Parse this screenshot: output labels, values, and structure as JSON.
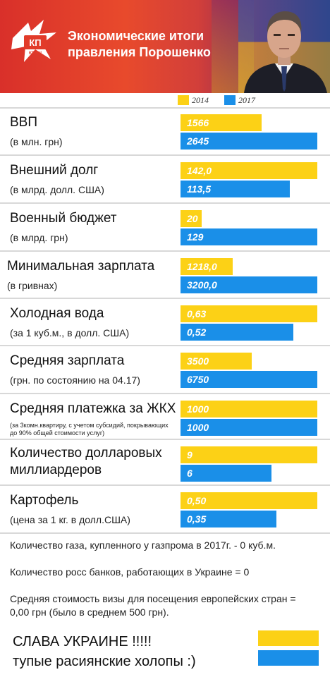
{
  "header": {
    "logo_text": "КП KP.RU",
    "title": "Экономические итоги правления Порошенко"
  },
  "colors": {
    "y2014": "#fcd116",
    "y2017": "#1a8fe8",
    "header_red": "#e84a2c"
  },
  "chart_data": {
    "type": "bar",
    "orientation": "horizontal",
    "legend": [
      "2014",
      "2017"
    ],
    "legend_position": "top",
    "value_scale": "each category scaled independently; the larger value spans the full bar width",
    "categories": [
      {
        "name": "ВВП",
        "sub": "(в млн. грн)",
        "v2014": 1566,
        "v2017": 2645,
        "l2014": "1566",
        "l2017": "2645",
        "max": 2645
      },
      {
        "name": "Внешний долг",
        "sub": "(в млрд. долл. США)",
        "v2014": 142.0,
        "v2017": 113.5,
        "l2014": "142,0",
        "l2017": "113,5",
        "max": 142.0
      },
      {
        "name": "Военный бюджет",
        "sub": "(в млрд. грн)",
        "v2014": 20,
        "v2017": 129,
        "l2014": "20",
        "l2017": "129",
        "max": 129
      },
      {
        "name": "Минимальная зарплата",
        "sub": "(в гривнах)",
        "v2014": 1218.0,
        "v2017": 3200.0,
        "l2014": "1218,0",
        "l2017": "3200,0",
        "max": 3200.0
      },
      {
        "name": "Холодная вода",
        "sub": "(за 1 куб.м., в долл. США)",
        "v2014": 0.63,
        "v2017": 0.52,
        "l2014": "0,63",
        "l2017": "0,52",
        "max": 0.63
      },
      {
        "name": "Средняя зарплата",
        "sub": "(грн. по состоянию на 04.17)",
        "v2014": 3500,
        "v2017": 6750,
        "l2014": "3500",
        "l2017": "6750",
        "max": 6750
      },
      {
        "name": "Средняя платежка за ЖКХ",
        "sub": "(за 3комн.квартиру, с учетом субсидий, покрывающих до 90% общей стоимости услуг)",
        "v2014": 1000,
        "v2017": 1000,
        "l2014": "1000",
        "l2017": "1000",
        "max": 1000
      },
      {
        "name": "Количество долларовых миллиардеров",
        "sub": "",
        "v2014": 9,
        "v2017": 6,
        "l2014": "9",
        "l2017": "6",
        "max": 9
      },
      {
        "name": "Картофель",
        "sub": "(цена за 1 кг. в долл.США)",
        "v2014": 0.5,
        "v2017": 0.35,
        "l2014": "0,50",
        "l2017": "0,35",
        "max": 0.5
      }
    ]
  },
  "footer": {
    "line1": "Количество газа, купленного у газпрома в 2017г. - 0 куб.м.",
    "line2": "Количество росс банков, работающих в Украине = 0",
    "line3": "Средняя стоимость визы для посещения европейских стран = 0,00 грн (было в среднем 500 грн).",
    "slogan1": "СЛАВА УКРАИНЕ !!!!!",
    "slogan2": "тупые расиянские холопы :)"
  }
}
